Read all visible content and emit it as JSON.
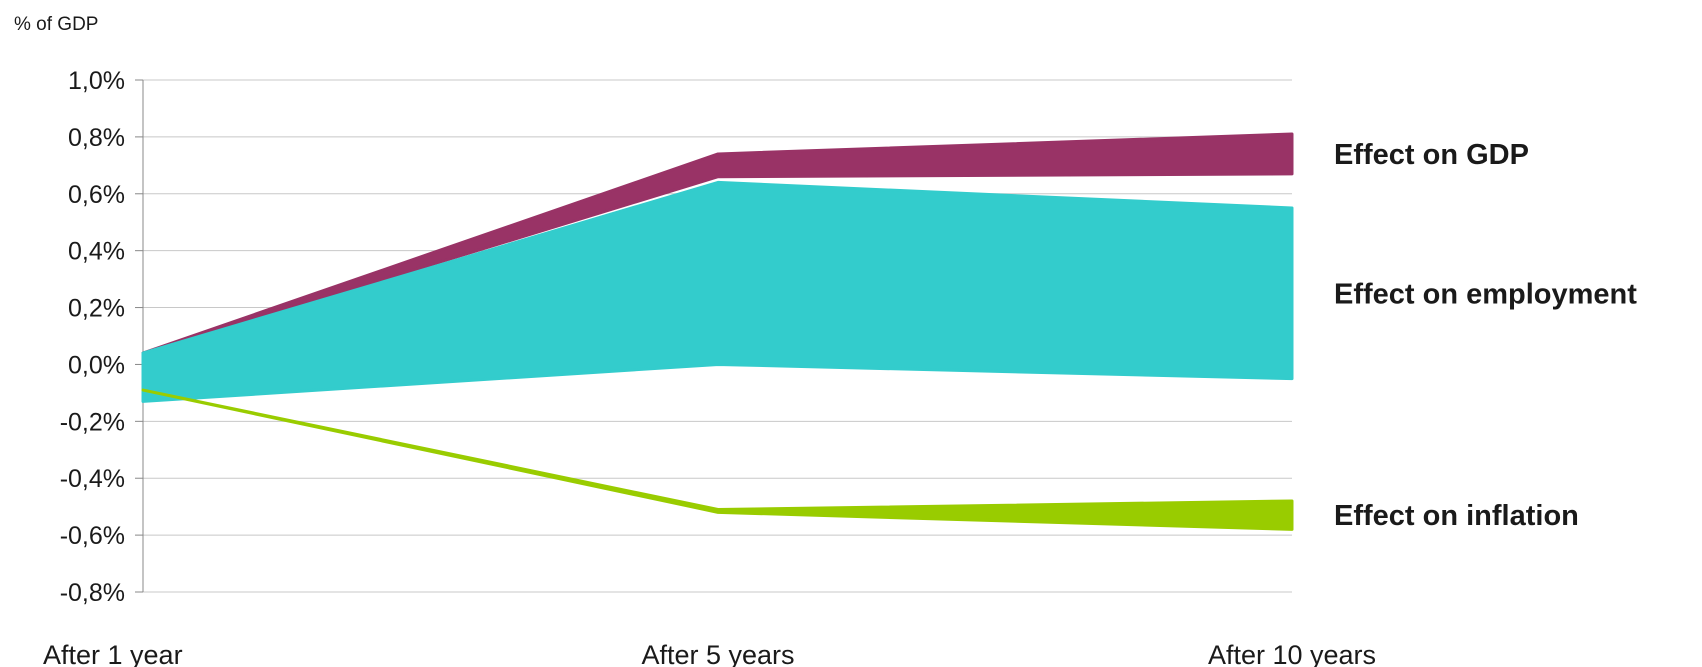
{
  "chart_data": {
    "type": "area",
    "unit_label": "% of GDP",
    "title": "",
    "xlabel": "",
    "ylabel": "",
    "categories": [
      "After 1 year",
      "After 5 years",
      "After 10 years"
    ],
    "y_ticks": [
      "1,0%",
      "0,8%",
      "0,6%",
      "0,4%",
      "0,2%",
      "0,0%",
      "-0,2%",
      "-0,4%",
      "-0,6%",
      "-0,8%"
    ],
    "ylim": [
      -0.8,
      1.0
    ],
    "grid": true,
    "series": [
      {
        "name": "Effect on GDP",
        "lower": [
          0.04,
          0.66,
          0.67
        ],
        "upper": [
          0.04,
          0.74,
          0.81
        ],
        "color": "#993366"
      },
      {
        "name": "Effect on employment",
        "lower": [
          -0.13,
          0.0,
          -0.05
        ],
        "upper": [
          0.04,
          0.64,
          0.55
        ],
        "color": "#33CCCC"
      },
      {
        "name": "Effect on inflation",
        "lower": [
          -0.09,
          -0.52,
          -0.58
        ],
        "upper": [
          -0.09,
          -0.51,
          -0.48
        ],
        "color": "#99CC00"
      }
    ]
  }
}
